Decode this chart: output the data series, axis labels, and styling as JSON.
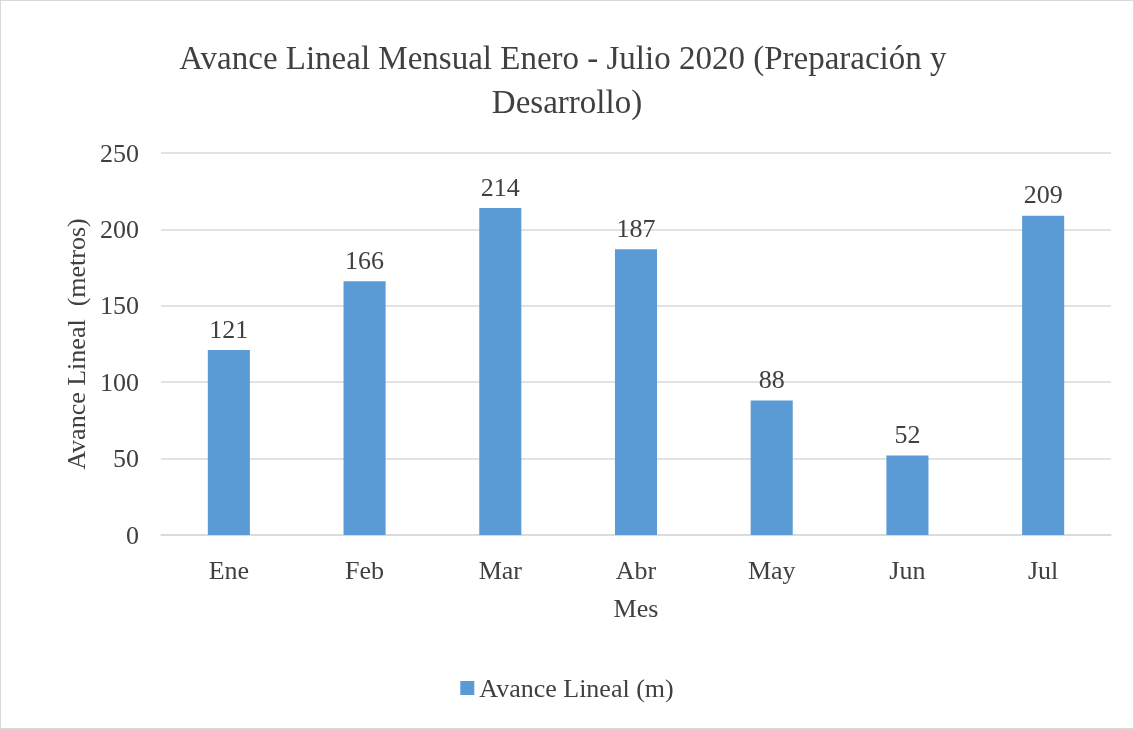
{
  "chart_data": {
    "type": "bar",
    "title": "Avance Lineal Mensual Enero - Julio 2020 (Preparación y Desarrollo)",
    "xlabel": "Mes",
    "ylabel": "Avance Lineal  (metros)",
    "categories": [
      "Ene",
      "Feb",
      "Mar",
      "Abr",
      "May",
      "Jun",
      "Jul"
    ],
    "series": [
      {
        "name": "Avance Lineal (m)",
        "color": "#5b9bd5",
        "values": [
          121,
          166,
          214,
          187,
          88,
          52,
          209
        ]
      }
    ],
    "ylim": [
      0,
      250
    ],
    "yticks": [
      0,
      50,
      100,
      150,
      200,
      250
    ],
    "grid": "y",
    "legend": "bottom",
    "data_labels": true
  }
}
